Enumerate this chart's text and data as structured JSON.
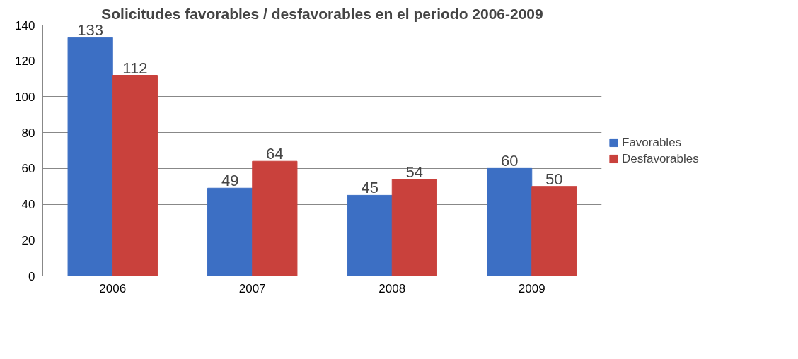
{
  "chart_data": {
    "type": "bar",
    "title": "Solicitudes favorables / desfavorables en el periodo 2006-2009",
    "categories": [
      "2006",
      "2007",
      "2008",
      "2009"
    ],
    "series": [
      {
        "name": "Favorables",
        "color": "#3c6fc4",
        "values": [
          133,
          49,
          45,
          60
        ]
      },
      {
        "name": "Desfavorables",
        "color": "#c9413c",
        "values": [
          112,
          64,
          54,
          50
        ]
      }
    ],
    "ylim": [
      0,
      140
    ],
    "yticks": [
      0,
      20,
      40,
      60,
      80,
      100,
      120,
      140
    ],
    "grid": "y",
    "legend": "right",
    "data_labels": true
  }
}
